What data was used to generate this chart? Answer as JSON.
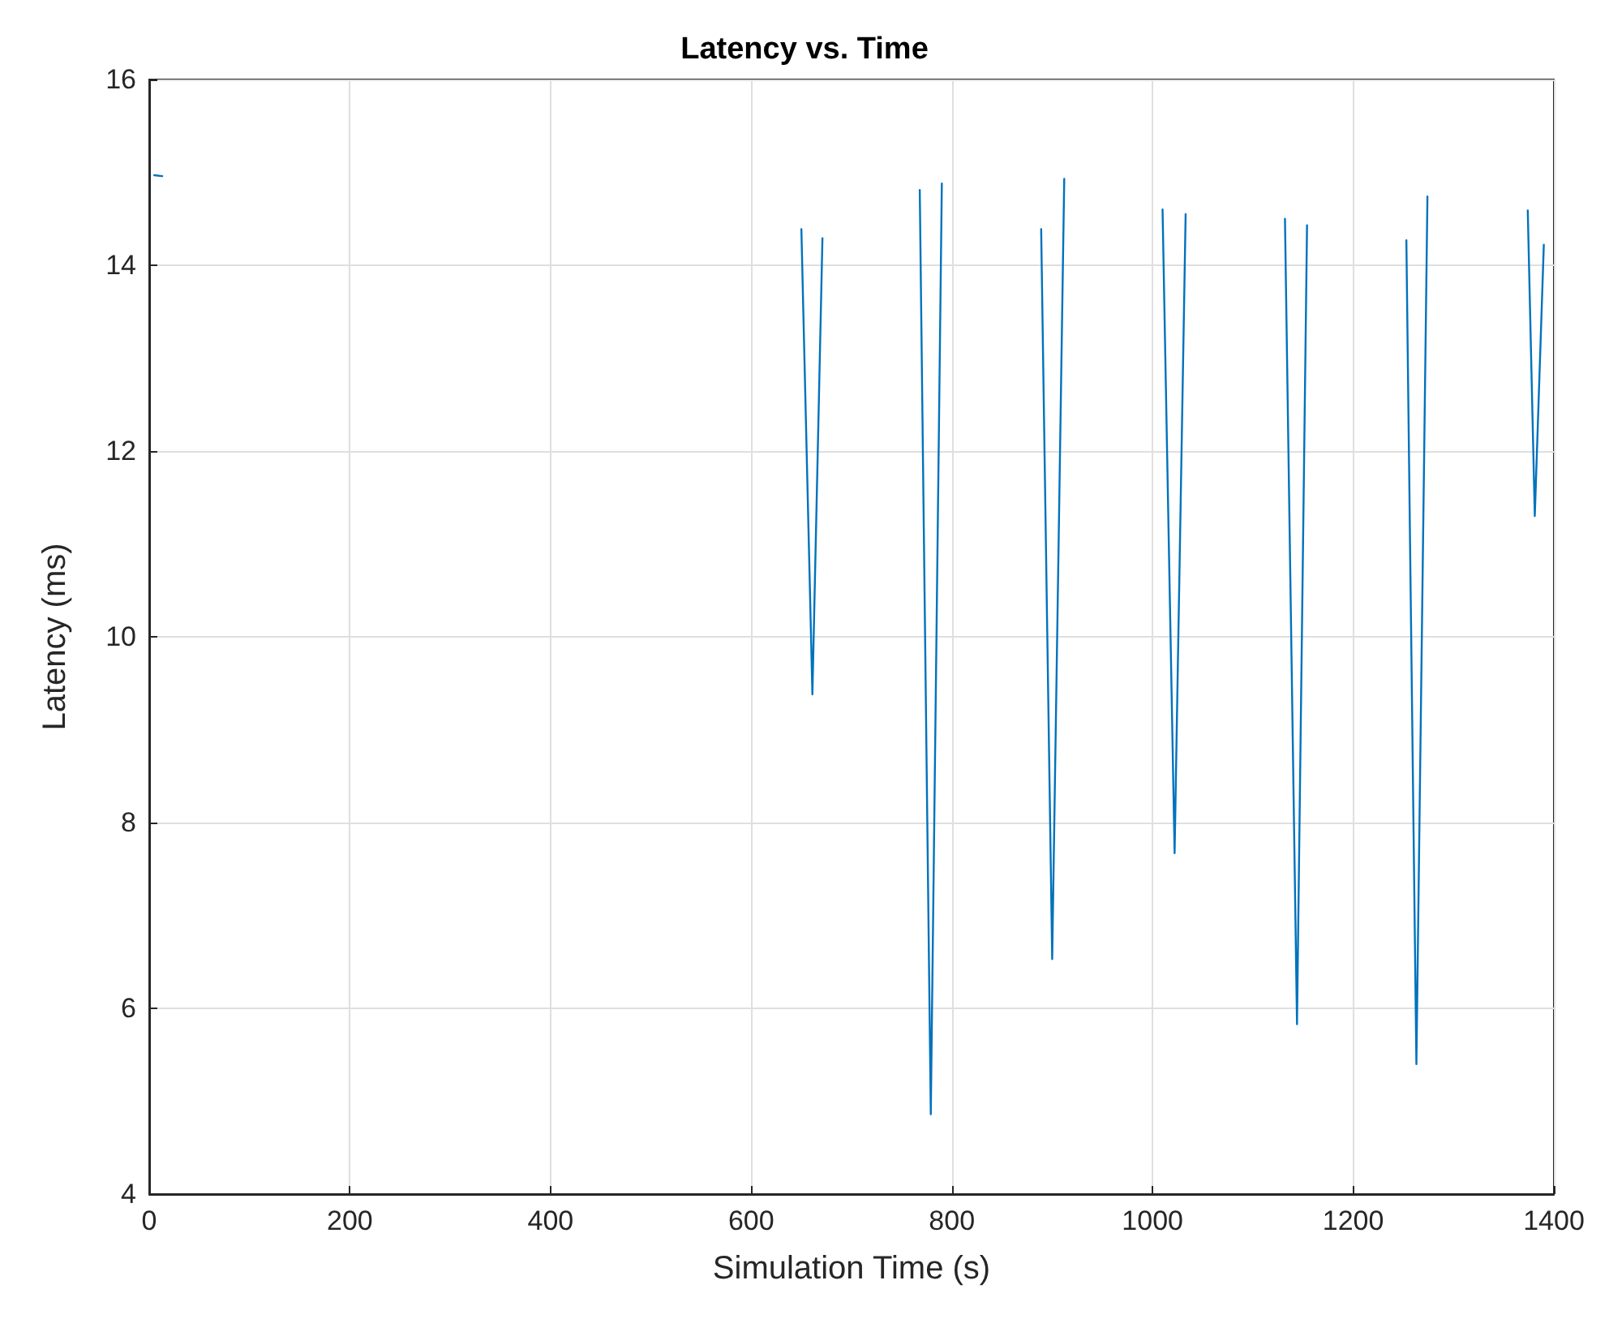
{
  "chart_data": {
    "type": "line",
    "title": "Latency vs. Time",
    "xlabel": "Simulation Time (s)",
    "ylabel": "Latency (ms)",
    "x": [
      5,
      13,
      null,
      650,
      661,
      671,
      null,
      768,
      779,
      790,
      null,
      889,
      900,
      912,
      null,
      1010,
      1022,
      1033,
      null,
      1132,
      1144,
      1154,
      null,
      1253,
      1263,
      1274,
      null,
      1374,
      1381,
      1390
    ],
    "series": [
      {
        "color": "#0072bd",
        "values": [
          14.97,
          14.96,
          null,
          14.39,
          9.38,
          14.29,
          null,
          14.81,
          4.86,
          14.88,
          null,
          14.39,
          6.53,
          14.93,
          null,
          14.6,
          7.67,
          14.55,
          null,
          14.5,
          5.83,
          14.43,
          null,
          14.27,
          5.4,
          14.74,
          null,
          14.59,
          11.3,
          14.22
        ]
      }
    ],
    "xlim": [
      0,
      1400
    ],
    "xticks": [
      0,
      200,
      400,
      600,
      800,
      1000,
      1200,
      1400
    ],
    "ylim": [
      4,
      16
    ],
    "yticks": [
      4,
      6,
      8,
      10,
      12,
      14,
      16
    ],
    "grid": true,
    "marker": "none",
    "line_style": "solid"
  }
}
